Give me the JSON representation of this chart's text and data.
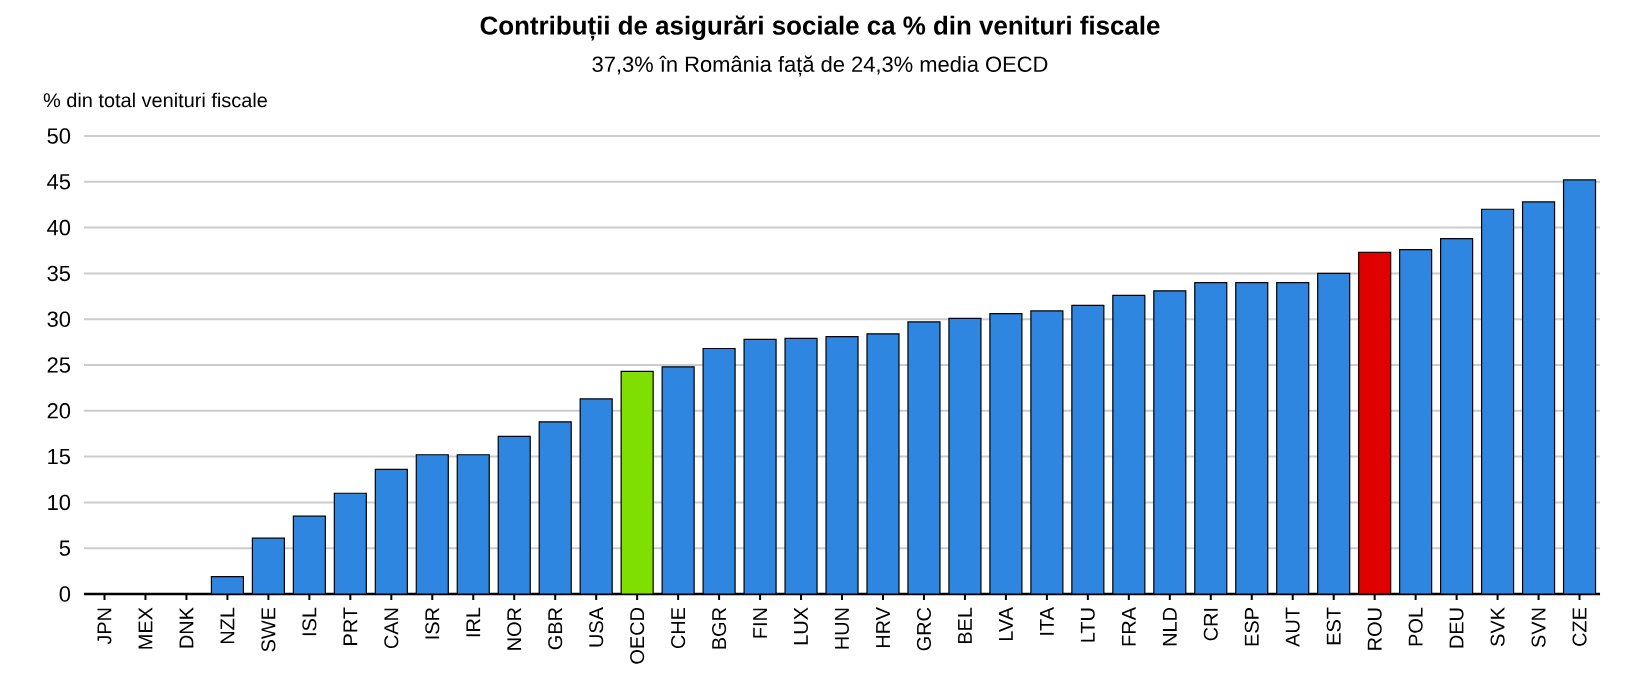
{
  "chart_data": {
    "type": "bar",
    "title": "Contribuții de asigurări sociale ca % din venituri fiscale",
    "subtitle": "37,3% în România față de 24,3% media OECD",
    "ylabel": "% din total venituri fiscale",
    "categories": [
      "JPN",
      "MEX",
      "DNK",
      "NZL",
      "SWE",
      "ISL",
      "PRT",
      "CAN",
      "ISR",
      "IRL",
      "NOR",
      "GBR",
      "USA",
      "OECD",
      "CHE",
      "BGR",
      "FIN",
      "LUX",
      "HUN",
      "HRV",
      "GRC",
      "BEL",
      "LVA",
      "ITA",
      "LTU",
      "FRA",
      "NLD",
      "CRI",
      "ESP",
      "AUT",
      "EST",
      "ROU",
      "POL",
      "DEU",
      "SVK",
      "SVN",
      "CZE"
    ],
    "values": [
      0,
      0,
      0,
      1.9,
      6.1,
      8.5,
      11.0,
      13.6,
      15.2,
      15.2,
      17.2,
      18.8,
      21.3,
      24.3,
      24.8,
      26.8,
      27.8,
      27.9,
      28.1,
      28.4,
      29.7,
      30.1,
      30.6,
      30.9,
      31.5,
      32.6,
      33.1,
      34.0,
      34.0,
      34.0,
      35.0,
      37.3,
      37.6,
      38.8,
      42.0,
      42.8,
      45.2
    ],
    "colors": [
      "#2e86e0",
      "#2e86e0",
      "#2e86e0",
      "#2e86e0",
      "#2e86e0",
      "#2e86e0",
      "#2e86e0",
      "#2e86e0",
      "#2e86e0",
      "#2e86e0",
      "#2e86e0",
      "#2e86e0",
      "#2e86e0",
      "#7fe000",
      "#2e86e0",
      "#2e86e0",
      "#2e86e0",
      "#2e86e0",
      "#2e86e0",
      "#2e86e0",
      "#2e86e0",
      "#2e86e0",
      "#2e86e0",
      "#2e86e0",
      "#2e86e0",
      "#2e86e0",
      "#2e86e0",
      "#2e86e0",
      "#2e86e0",
      "#2e86e0",
      "#2e86e0",
      "#e00000",
      "#2e86e0",
      "#2e86e0",
      "#2e86e0",
      "#2e86e0",
      "#2e86e0"
    ],
    "ylim": [
      0,
      50
    ],
    "yticks": [
      0,
      5,
      10,
      15,
      20,
      25,
      30,
      35,
      40,
      45,
      50
    ],
    "grid": "y"
  }
}
